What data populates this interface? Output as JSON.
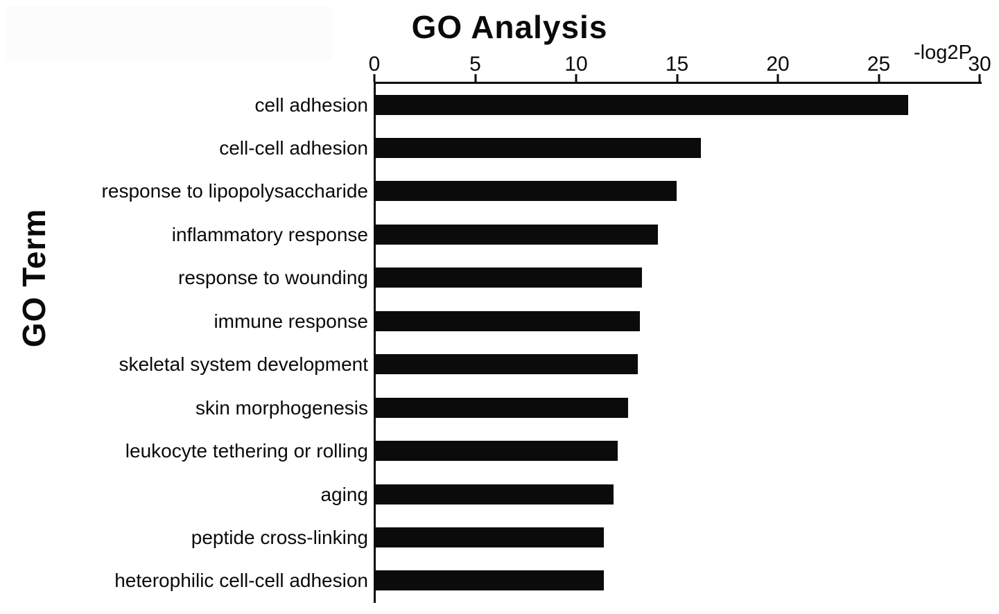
{
  "title": "GO Analysis",
  "x_axis_unit": "-log2P",
  "y_axis_title": "GO Term",
  "chart_data": {
    "type": "bar",
    "orientation": "horizontal",
    "title": "GO Analysis",
    "xlabel": "-log2P",
    "ylabel": "GO Term",
    "xlim": [
      0,
      30
    ],
    "xticks": [
      0,
      5,
      10,
      15,
      20,
      25,
      30
    ],
    "grid": false,
    "legend": false,
    "bar_color": "#0b0b0b",
    "categories": [
      "cell adhesion",
      "cell-cell adhesion",
      "response to lipopolysaccharide",
      "inflammatory response",
      "response to wounding",
      "immune response",
      "skeletal system development",
      "skin morphogenesis",
      "leukocyte tethering or rolling",
      "aging",
      "peptide cross-linking",
      "heterophilic cell-cell adhesion"
    ],
    "values": [
      26.4,
      16.1,
      14.9,
      14.0,
      13.2,
      13.1,
      13.0,
      12.5,
      12.0,
      11.8,
      11.3,
      11.3
    ]
  }
}
